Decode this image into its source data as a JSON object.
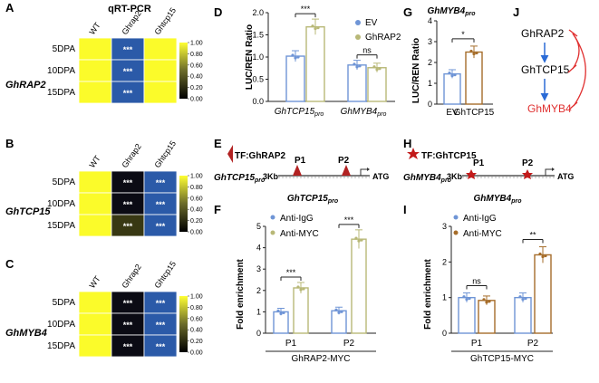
{
  "heatmap_title": "qRT-PCR",
  "panel_letters": {
    "A": "A",
    "B": "B",
    "C": "C",
    "D": "D",
    "E": "E",
    "F": "F",
    "G": "G",
    "H": "H",
    "I": "I",
    "J": "J"
  },
  "heatmaps": {
    "A": {
      "gene": "GhRAP2",
      "columns": [
        "WT",
        "Ghrap2",
        "Ghtcp15"
      ],
      "rows": [
        "5DPA",
        "10DPA",
        "15DPA"
      ],
      "values": [
        [
          1.0,
          0.15,
          1.0
        ],
        [
          1.0,
          0.15,
          1.0
        ],
        [
          1.0,
          0.15,
          1.0
        ]
      ],
      "marks": [
        [
          "",
          "***",
          ""
        ],
        [
          "",
          "***",
          ""
        ],
        [
          "",
          "***",
          ""
        ]
      ]
    },
    "B": {
      "gene": "GhTCP15",
      "columns": [
        "WT",
        "Ghrap2",
        "Ghtcp15"
      ],
      "rows": [
        "5DPA",
        "10DPA",
        "15DPA"
      ],
      "values": [
        [
          1.0,
          0.0,
          0.15
        ],
        [
          1.0,
          0.0,
          0.15
        ],
        [
          1.0,
          0.3,
          0.15
        ]
      ],
      "marks": [
        [
          "",
          "***",
          "***"
        ],
        [
          "",
          "***",
          "***"
        ],
        [
          "",
          "***",
          "***"
        ]
      ]
    },
    "C": {
      "gene": "GhMYB4",
      "columns": [
        "WT",
        "Ghrap2",
        "Ghtcp15"
      ],
      "rows": [
        "5DPA",
        "10DPA",
        "15DPA"
      ],
      "values": [
        [
          1.0,
          0.0,
          0.15
        ],
        [
          1.0,
          0.0,
          0.15
        ],
        [
          1.0,
          0.0,
          0.15
        ]
      ],
      "marks": [
        [
          "",
          "***",
          "***"
        ],
        [
          "",
          "***",
          "***"
        ],
        [
          "",
          "***",
          "***"
        ]
      ]
    }
  },
  "colorbar_ticks": [
    "1.00",
    "0.80",
    "0.60",
    "0.40",
    "0.20",
    "0.00"
  ],
  "labels": {
    "luc_ylabel": "LUC/REN Ratio",
    "fold_ylabel": "Fold enrichment",
    "gtcp15pro": "GhTCP15pro",
    "gmyb4pro": "GhMYB4pro",
    "ghrap2_myc": "GhRAP2-MYC",
    "ghtcp15_myc": "GhTCP15-MYC",
    "tf_rap2": "TF:GhRAP2",
    "tf_tcp15": "TF:GhTCP15",
    "p1": "P1",
    "p2": "P2",
    "kb": "3Kb",
    "atg": "ATG"
  },
  "chart_data": [
    {
      "panel": "D",
      "type": "bar",
      "categories": [
        "GhTCP15pro",
        "GhMYB4pro"
      ],
      "series": [
        {
          "name": "EV",
          "values": [
            1.02,
            0.82
          ],
          "color": "#6f95d6"
        },
        {
          "name": "GhRAP2",
          "values": [
            1.68,
            0.76
          ],
          "color": "#b8b877"
        }
      ],
      "ylabel": "LUC/REN Ratio",
      "ylim": [
        0,
        2.0
      ],
      "yticks": [
        0.0,
        0.5,
        1.0,
        1.5,
        2.0
      ],
      "significance": [
        {
          "text": "***"
        },
        {
          "text": "ns"
        }
      ]
    },
    {
      "panel": "G",
      "type": "bar",
      "title": "GhMYB4pro",
      "categories": [
        "EV",
        "GhTCP15"
      ],
      "values": [
        1.45,
        2.5
      ],
      "colors": [
        "#6f95d6",
        "#a66d2a"
      ],
      "ylabel": "LUC/REN Ratio",
      "ylim": [
        0,
        4
      ],
      "yticks": [
        0,
        1,
        2,
        3,
        4
      ],
      "significance": [
        {
          "text": "*"
        }
      ]
    },
    {
      "panel": "F",
      "type": "bar",
      "title": "GhTCP15pro",
      "categories": [
        "P1",
        "P2"
      ],
      "series": [
        {
          "name": "Anti-IgG",
          "values": [
            1.0,
            1.05
          ],
          "color": "#6f95d6"
        },
        {
          "name": "Anti-MYC",
          "values": [
            2.12,
            4.4
          ],
          "color": "#b8b877"
        }
      ],
      "ylabel": "Fold enrichment",
      "ylim": [
        0,
        5
      ],
      "yticks": [
        0,
        1,
        2,
        3,
        4,
        5
      ],
      "xlabel": "GhRAP2-MYC",
      "significance": [
        {
          "text": "***"
        },
        {
          "text": "***"
        }
      ]
    },
    {
      "panel": "I",
      "type": "bar",
      "title": "GhMYB4pro",
      "categories": [
        "P1",
        "P2"
      ],
      "series": [
        {
          "name": "Anti-IgG",
          "values": [
            1.0,
            1.0
          ],
          "color": "#6f95d6"
        },
        {
          "name": "Anti-MYC",
          "values": [
            0.92,
            2.2
          ],
          "color": "#a66d2a"
        }
      ],
      "ylabel": "Fold enrichment",
      "ylim": [
        0,
        3
      ],
      "yticks": [
        0,
        1,
        2,
        3
      ],
      "xlabel": "GhTCP15-MYC",
      "significance": [
        {
          "text": "ns"
        },
        {
          "text": "**"
        }
      ]
    }
  ],
  "model": {
    "node1": "GhRAP2",
    "node2": "GhTCP15",
    "node3": "GhMYB4",
    "node3_color": "#e03030"
  }
}
